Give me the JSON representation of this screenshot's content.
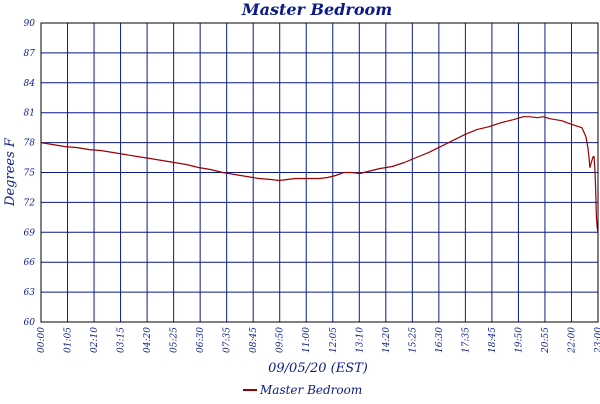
{
  "chart_data": {
    "type": "line",
    "title": "Master Bedroom",
    "xlabel": "09/05/20 (EST)",
    "ylabel": "Degrees F",
    "ylim": [
      60,
      90
    ],
    "y_ticks": [
      60,
      63,
      66,
      69,
      72,
      75,
      78,
      81,
      84,
      87,
      90
    ],
    "y_tick_labels": [
      "60",
      "63",
      "66",
      "69",
      "72",
      "75",
      "78",
      "81",
      "84",
      "87",
      "90"
    ],
    "x_tick_labels": [
      "00:00",
      "01:05",
      "02:10",
      "03:15",
      "04:20",
      "05:25",
      "06:30",
      "07:35",
      "08:45",
      "09:50",
      "11:00",
      "12:05",
      "13:10",
      "14:20",
      "15:25",
      "16:30",
      "17:35",
      "18:45",
      "19:50",
      "20:55",
      "22:00",
      "23:00"
    ],
    "xlim": [
      0,
      1380
    ],
    "grid": true,
    "legend_position": "bottom-center",
    "series": [
      {
        "name": "Master Bedroom",
        "color": "#990000",
        "points": [
          [
            0,
            78.0
          ],
          [
            30,
            77.8
          ],
          [
            60,
            77.6
          ],
          [
            90,
            77.5
          ],
          [
            120,
            77.3
          ],
          [
            150,
            77.2
          ],
          [
            180,
            77.0
          ],
          [
            210,
            76.8
          ],
          [
            240,
            76.6
          ],
          [
            270,
            76.4
          ],
          [
            300,
            76.2
          ],
          [
            330,
            76.0
          ],
          [
            360,
            75.8
          ],
          [
            390,
            75.5
          ],
          [
            420,
            75.3
          ],
          [
            450,
            75.0
          ],
          [
            480,
            74.8
          ],
          [
            510,
            74.6
          ],
          [
            540,
            74.4
          ],
          [
            570,
            74.3
          ],
          [
            590,
            74.2
          ],
          [
            610,
            74.3
          ],
          [
            630,
            74.4
          ],
          [
            660,
            74.4
          ],
          [
            690,
            74.4
          ],
          [
            710,
            74.5
          ],
          [
            730,
            74.7
          ],
          [
            750,
            75.0
          ],
          [
            770,
            75.0
          ],
          [
            790,
            74.9
          ],
          [
            810,
            75.1
          ],
          [
            840,
            75.4
          ],
          [
            870,
            75.6
          ],
          [
            900,
            76.0
          ],
          [
            930,
            76.5
          ],
          [
            960,
            77.0
          ],
          [
            990,
            77.6
          ],
          [
            1020,
            78.2
          ],
          [
            1050,
            78.8
          ],
          [
            1080,
            79.3
          ],
          [
            1110,
            79.6
          ],
          [
            1140,
            80.0
          ],
          [
            1170,
            80.3
          ],
          [
            1195,
            80.6
          ],
          [
            1210,
            80.6
          ],
          [
            1230,
            80.5
          ],
          [
            1245,
            80.6
          ],
          [
            1260,
            80.4
          ],
          [
            1290,
            80.2
          ],
          [
            1310,
            79.9
          ],
          [
            1325,
            79.7
          ],
          [
            1340,
            79.5
          ],
          [
            1350,
            78.6
          ],
          [
            1355,
            77.5
          ],
          [
            1358,
            76.4
          ],
          [
            1360,
            75.5
          ],
          [
            1365,
            76.2
          ],
          [
            1368,
            76.6
          ],
          [
            1370,
            76.6
          ],
          [
            1372,
            75.5
          ],
          [
            1374,
            73.5
          ],
          [
            1376,
            70.5
          ],
          [
            1378,
            69.5
          ],
          [
            1380,
            69.0
          ]
        ]
      }
    ]
  }
}
